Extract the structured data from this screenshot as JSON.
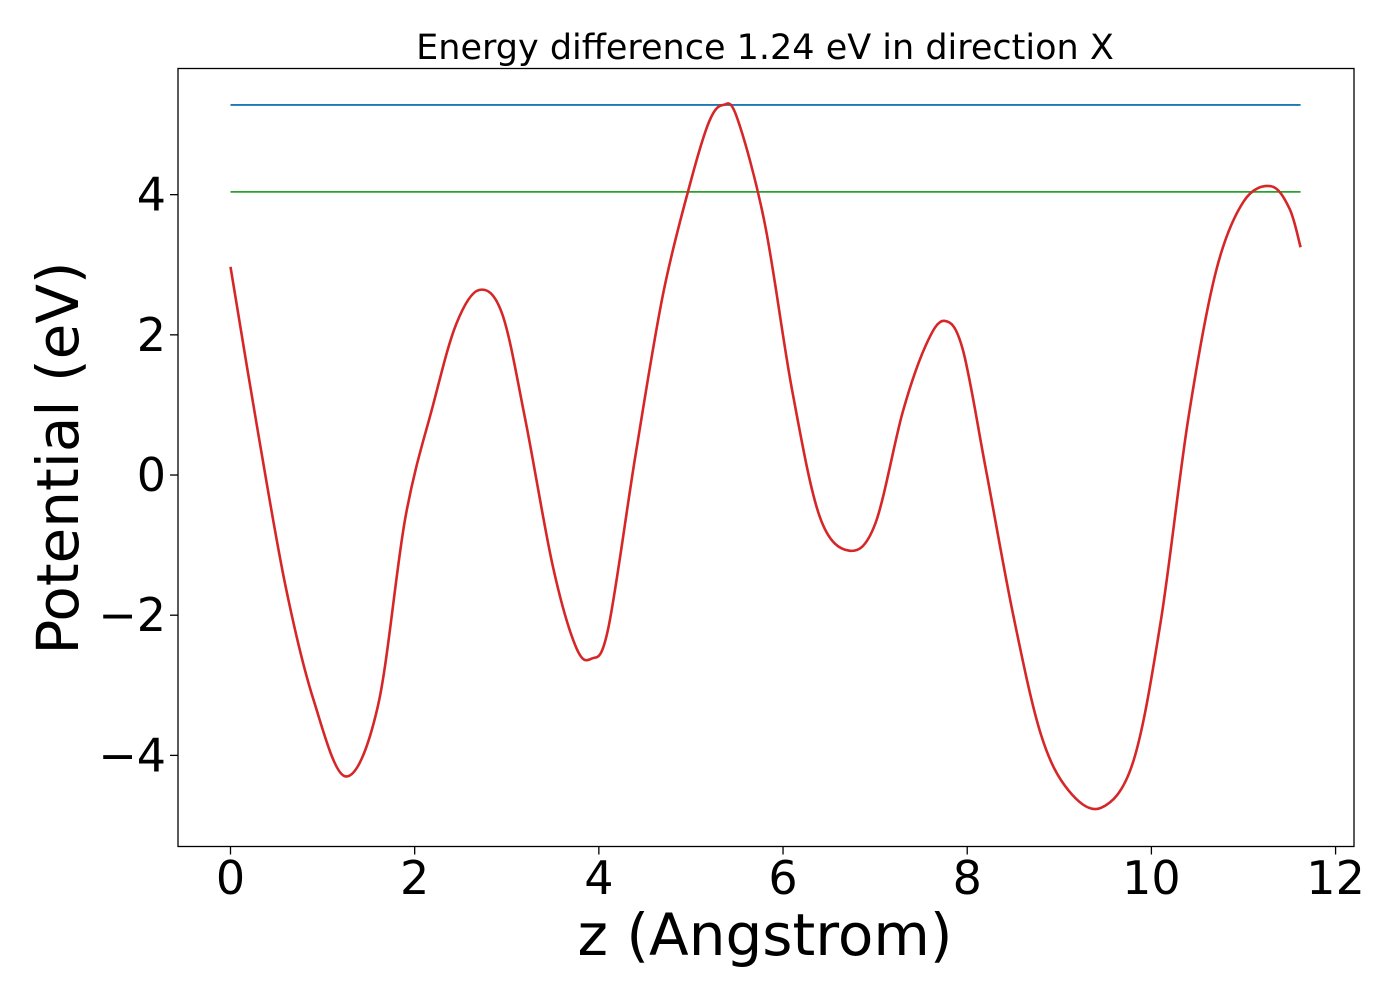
{
  "chart_data": {
    "type": "line",
    "title": "Energy difference 1.24 eV in direction X",
    "xlabel": "z (Angstrom)",
    "ylabel": "Potential (eV)",
    "xlim": [
      -0.57,
      12.2
    ],
    "ylim": [
      -5.3,
      5.8
    ],
    "xticks": [
      0,
      2,
      4,
      6,
      8,
      10,
      12
    ],
    "yticks": [
      -4,
      -2,
      0,
      2,
      4
    ],
    "grid": false,
    "series": [
      {
        "color": "#d62728",
        "x": [
          0,
          0.3,
          0.6,
          0.9,
          1.25,
          1.6,
          1.9,
          2.2,
          2.45,
          2.7,
          2.95,
          3.2,
          3.5,
          3.75,
          3.92,
          4.1,
          4.4,
          4.7,
          5.0,
          5.2,
          5.35,
          5.5,
          5.8,
          6.1,
          6.4,
          6.72,
          7.0,
          7.3,
          7.55,
          7.75,
          7.95,
          8.2,
          8.5,
          8.8,
          9.1,
          9.45,
          9.8,
          10.1,
          10.4,
          10.7,
          11.0,
          11.3,
          11.5,
          11.62
        ],
        "y": [
          2.97,
          0.6,
          -1.6,
          -3.2,
          -4.3,
          -3.3,
          -0.6,
          1.0,
          2.15,
          2.64,
          2.3,
          0.8,
          -1.3,
          -2.45,
          -2.62,
          -2.2,
          0.3,
          2.6,
          4.2,
          5.05,
          5.28,
          5.1,
          3.6,
          1.2,
          -0.6,
          -1.08,
          -0.7,
          0.9,
          1.85,
          2.2,
          1.8,
          0.1,
          -2.0,
          -3.7,
          -4.5,
          -4.75,
          -4.1,
          -2.1,
          0.8,
          2.9,
          3.9,
          4.12,
          3.8,
          3.25
        ]
      },
      {
        "color": "#1f77b4",
        "x": [
          0,
          11.62
        ],
        "y": [
          5.28,
          5.28
        ]
      },
      {
        "color": "#2ca02c",
        "x": [
          0,
          11.62
        ],
        "y": [
          4.04,
          4.04
        ]
      }
    ]
  }
}
